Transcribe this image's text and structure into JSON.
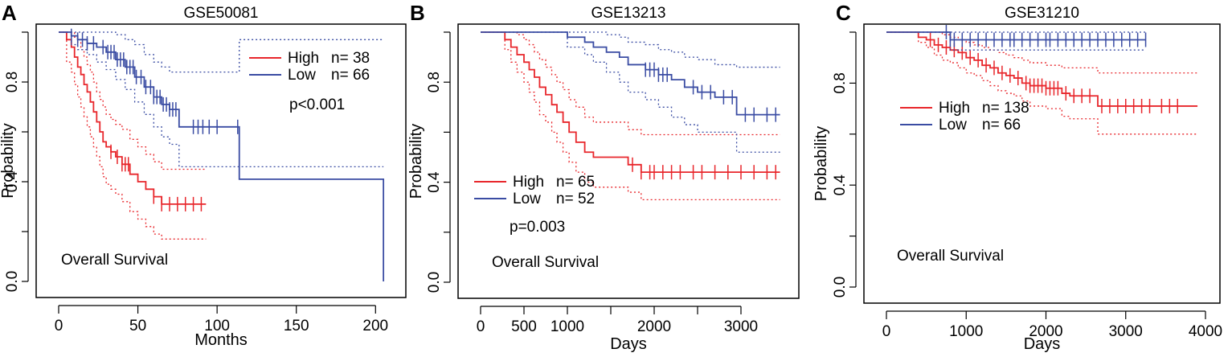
{
  "chart_data": [
    {
      "panel": "A",
      "type": "line",
      "title": "GSE50081",
      "xlabel": "Months",
      "ylabel": "Probability",
      "xlim": [
        0,
        210
      ],
      "ylim": [
        0,
        1
      ],
      "xticks": [
        0,
        50,
        100,
        150,
        200
      ],
      "yticks": [
        0.0,
        0.4,
        0.8
      ],
      "annotation": "Overall Survival",
      "pvalue": "p<0.001",
      "legend": [
        {
          "name": "High",
          "n_label": "n= 38",
          "color": "#e8262b"
        },
        {
          "name": "Low",
          "n_label": "n= 66",
          "color": "#3a4ca3"
        }
      ],
      "series": [
        {
          "name": "High",
          "color": "#e8262b",
          "x": [
            0,
            5,
            8,
            10,
            12,
            14,
            16,
            18,
            20,
            22,
            24,
            26,
            28,
            30,
            33,
            36,
            40,
            45,
            50,
            55,
            60,
            65,
            93
          ],
          "y": [
            1.0,
            0.97,
            0.94,
            0.9,
            0.86,
            0.83,
            0.79,
            0.76,
            0.72,
            0.68,
            0.64,
            0.6,
            0.56,
            0.54,
            0.52,
            0.5,
            0.47,
            0.43,
            0.4,
            0.37,
            0.34,
            0.31,
            0.31
          ],
          "upper": [
            1.0,
            1.0,
            1.0,
            0.98,
            0.96,
            0.93,
            0.9,
            0.87,
            0.84,
            0.8,
            0.76,
            0.73,
            0.7,
            0.67,
            0.65,
            0.63,
            0.61,
            0.57,
            0.54,
            0.51,
            0.48,
            0.45,
            0.45
          ],
          "lower": [
            1.0,
            0.88,
            0.84,
            0.79,
            0.74,
            0.7,
            0.66,
            0.62,
            0.58,
            0.54,
            0.5,
            0.46,
            0.42,
            0.39,
            0.37,
            0.35,
            0.32,
            0.28,
            0.25,
            0.22,
            0.19,
            0.17,
            0.17
          ],
          "censor": [
            33,
            37,
            40,
            42,
            44,
            60,
            65,
            70,
            75,
            80,
            85,
            90
          ]
        },
        {
          "name": "Low",
          "color": "#3a4ca3",
          "x": [
            0,
            8,
            12,
            18,
            24,
            30,
            36,
            42,
            48,
            54,
            60,
            65,
            70,
            76,
            114,
            205
          ],
          "y": [
            1.0,
            0.985,
            0.97,
            0.955,
            0.94,
            0.92,
            0.89,
            0.86,
            0.82,
            0.78,
            0.74,
            0.71,
            0.69,
            0.62,
            0.41,
            0.0
          ],
          "upper": [
            1.0,
            1.0,
            1.0,
            1.0,
            1.0,
            1.0,
            0.99,
            0.97,
            0.95,
            0.91,
            0.88,
            0.86,
            0.84,
            0.84,
            0.97,
            0.97
          ],
          "lower": [
            1.0,
            0.95,
            0.93,
            0.91,
            0.88,
            0.85,
            0.81,
            0.77,
            0.72,
            0.67,
            0.62,
            0.58,
            0.55,
            0.46,
            0.46,
            0.46
          ],
          "censor": [
            8,
            12,
            15,
            18,
            22,
            28,
            31,
            33,
            35,
            37,
            39,
            41,
            43,
            45,
            47,
            49,
            52,
            55,
            58,
            60,
            62,
            64,
            66,
            68,
            70,
            72,
            74,
            85,
            88,
            91,
            95,
            100,
            113
          ]
        }
      ]
    },
    {
      "panel": "B",
      "type": "line",
      "title": "GSE13213",
      "xlabel": "Days",
      "ylabel": "Probability",
      "xlim": [
        0,
        3500
      ],
      "ylim": [
        0,
        1
      ],
      "xticks": [
        0,
        500,
        1000,
        1500,
        2000,
        2500,
        3000
      ],
      "xticklabels": [
        "0",
        "500",
        "1000",
        "",
        "2000",
        "",
        "3000"
      ],
      "yticks": [
        0.0,
        0.4,
        0.8
      ],
      "annotation": "Overall Survival",
      "pvalue": "p=0.003",
      "legend": [
        {
          "name": "High",
          "n_label": "n= 65",
          "color": "#e8262b"
        },
        {
          "name": "Low",
          "n_label": "n= 52",
          "color": "#3a4ca3"
        }
      ],
      "series": [
        {
          "name": "High",
          "color": "#e8262b",
          "x": [
            0,
            200,
            280,
            350,
            420,
            500,
            560,
            620,
            680,
            750,
            820,
            880,
            950,
            1020,
            1100,
            1200,
            1300,
            1400,
            1700,
            1850,
            3450
          ],
          "y": [
            1.0,
            1.0,
            0.97,
            0.94,
            0.91,
            0.88,
            0.85,
            0.82,
            0.78,
            0.75,
            0.71,
            0.68,
            0.64,
            0.6,
            0.56,
            0.52,
            0.5,
            0.5,
            0.47,
            0.44,
            0.44
          ],
          "upper": [
            1.0,
            1.0,
            1.0,
            1.0,
            0.99,
            0.97,
            0.95,
            0.92,
            0.89,
            0.86,
            0.83,
            0.8,
            0.77,
            0.73,
            0.7,
            0.66,
            0.64,
            0.64,
            0.61,
            0.59,
            0.59
          ],
          "lower": [
            1.0,
            1.0,
            0.93,
            0.88,
            0.84,
            0.8,
            0.76,
            0.72,
            0.67,
            0.64,
            0.6,
            0.56,
            0.52,
            0.48,
            0.44,
            0.4,
            0.38,
            0.38,
            0.36,
            0.33,
            0.33
          ],
          "censor": [
            1750,
            1850,
            1950,
            2000,
            2100,
            2200,
            2300,
            2450,
            2550,
            2700,
            2850,
            3000,
            3150,
            3300,
            3400
          ]
        },
        {
          "name": "Low",
          "color": "#3a4ca3",
          "x": [
            0,
            900,
            1000,
            1200,
            1300,
            1450,
            1600,
            1700,
            1900,
            2050,
            2200,
            2350,
            2500,
            2700,
            2950,
            3450
          ],
          "y": [
            1.0,
            1.0,
            0.98,
            0.96,
            0.94,
            0.92,
            0.9,
            0.87,
            0.85,
            0.83,
            0.81,
            0.78,
            0.76,
            0.74,
            0.67,
            0.67
          ],
          "upper": [
            1.0,
            1.0,
            1.0,
            1.0,
            1.0,
            0.99,
            0.98,
            0.96,
            0.95,
            0.93,
            0.92,
            0.9,
            0.89,
            0.87,
            0.86,
            0.86
          ],
          "lower": [
            1.0,
            1.0,
            0.94,
            0.91,
            0.88,
            0.84,
            0.8,
            0.76,
            0.73,
            0.7,
            0.66,
            0.63,
            0.6,
            0.6,
            0.52,
            0.52
          ],
          "censor": [
            1900,
            1950,
            2000,
            2050,
            2100,
            2150,
            2450,
            2550,
            2650,
            2800,
            2900,
            3050,
            3150,
            3300,
            3400
          ]
        }
      ]
    },
    {
      "panel": "C",
      "type": "line",
      "title": "GSE31210",
      "xlabel": "Days",
      "ylabel": "Probability",
      "xlim": [
        0,
        4000
      ],
      "ylim": [
        0,
        1
      ],
      "xticks": [
        0,
        1000,
        2000,
        3000,
        4000
      ],
      "yticks": [
        0.0,
        0.4,
        0.8
      ],
      "annotation": "Overall Survival",
      "legend": [
        {
          "name": "High",
          "n_label": "n= 138",
          "color": "#e8262b"
        },
        {
          "name": "Low",
          "n_label": "n= 66",
          "color": "#3a4ca3"
        }
      ],
      "series": [
        {
          "name": "High",
          "color": "#e8262b",
          "x": [
            0,
            300,
            400,
            500,
            600,
            700,
            800,
            900,
            1000,
            1100,
            1200,
            1300,
            1400,
            1500,
            1600,
            1700,
            1800,
            1900,
            2000,
            2200,
            2300,
            2650,
            3900
          ],
          "y": [
            1.0,
            1.0,
            0.98,
            0.97,
            0.95,
            0.94,
            0.93,
            0.92,
            0.9,
            0.89,
            0.87,
            0.86,
            0.84,
            0.83,
            0.82,
            0.8,
            0.79,
            0.79,
            0.78,
            0.76,
            0.75,
            0.71,
            0.71
          ],
          "upper": [
            1.0,
            1.0,
            1.0,
            1.0,
            1.0,
            0.99,
            0.98,
            0.97,
            0.96,
            0.95,
            0.94,
            0.93,
            0.92,
            0.91,
            0.9,
            0.89,
            0.88,
            0.88,
            0.87,
            0.86,
            0.86,
            0.84,
            0.84
          ],
          "lower": [
            1.0,
            1.0,
            0.96,
            0.94,
            0.91,
            0.89,
            0.88,
            0.86,
            0.84,
            0.83,
            0.81,
            0.79,
            0.77,
            0.76,
            0.75,
            0.73,
            0.71,
            0.71,
            0.7,
            0.67,
            0.66,
            0.6,
            0.6
          ],
          "censor": [
            550,
            650,
            750,
            850,
            950,
            1050,
            1150,
            1250,
            1350,
            1450,
            1550,
            1650,
            1750,
            1800,
            1850,
            1900,
            1950,
            2000,
            2050,
            2100,
            2150,
            2250,
            2350,
            2450,
            2550,
            2700,
            2800,
            2900,
            3000,
            3100,
            3200,
            3300,
            3450,
            3550,
            3650
          ]
        },
        {
          "name": "Low",
          "color": "#3a4ca3",
          "x": [
            0,
            700,
            800,
            3250
          ],
          "y": [
            1.0,
            1.0,
            0.97,
            0.97
          ],
          "upper": [
            1.0,
            1.0,
            1.0,
            1.0
          ],
          "lower": [
            1.0,
            1.0,
            0.93,
            0.93
          ],
          "censor": [
            750,
            800,
            850,
            950,
            1050,
            1150,
            1250,
            1350,
            1450,
            1550,
            1600,
            1700,
            1800,
            1900,
            2000,
            2050,
            2150,
            2250,
            2350,
            2450,
            2550,
            2650,
            2750,
            2850,
            2950,
            3050,
            3150,
            3250
          ]
        }
      ]
    }
  ]
}
